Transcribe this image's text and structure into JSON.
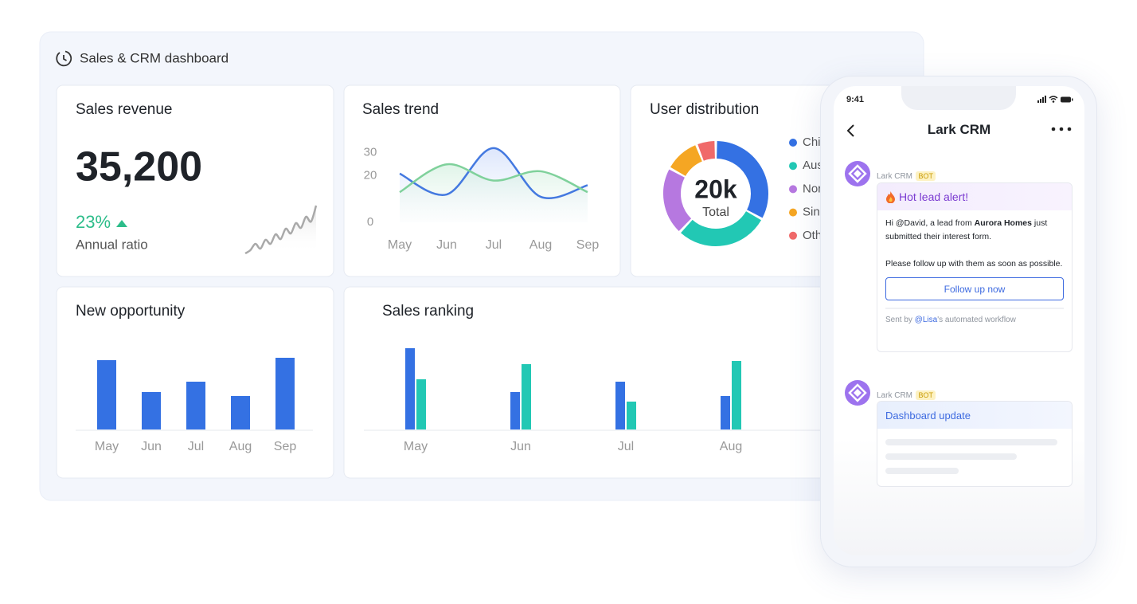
{
  "dashboard": {
    "title": "Sales & CRM dashboard",
    "sales_revenue": {
      "title": "Sales revenue",
      "value": "35,200",
      "change": "23%",
      "change_label": "Annual ratio",
      "sparkline": [
        0,
        4,
        12,
        6,
        17,
        12,
        24,
        18,
        31,
        25,
        38,
        32,
        46,
        40,
        60
      ],
      "color": "#a9a9a9"
    },
    "sales_trend": {
      "type": "line",
      "title": "Sales trend",
      "categories": [
        "May",
        "Jun",
        "Jul",
        "Aug",
        "Sep"
      ],
      "series": [
        {
          "color": "#4479e0",
          "values": [
            21,
            12,
            32,
            11,
            16
          ]
        },
        {
          "color": "#7fd19b",
          "values": [
            13,
            25,
            18,
            22,
            13
          ]
        }
      ],
      "ylim": [
        0,
        34
      ],
      "yticks": [
        0,
        20,
        30
      ]
    },
    "user_distribution": {
      "type": "pie",
      "title": "User distribution",
      "center_value": "20k",
      "center_label": "Total",
      "categories": [
        "Chi",
        "Aus",
        "Nor",
        "Sin",
        "Oth"
      ],
      "values": [
        33,
        29,
        21,
        11,
        6
      ],
      "colors": [
        "#3471e3",
        "#22c8b4",
        "#b678e0",
        "#f5a623",
        "#f06a6a"
      ]
    },
    "new_opportunity": {
      "type": "bar",
      "title": "New opportunity",
      "categories": [
        "May",
        "Jun",
        "Jul",
        "Aug",
        "Sep"
      ],
      "values": [
        87,
        47,
        60,
        42,
        90
      ],
      "color": "#3471e3"
    },
    "sales_ranking": {
      "type": "bar",
      "title": "Sales ranking",
      "categories": [
        "May",
        "Jun",
        "Jul",
        "Aug"
      ],
      "series": [
        {
          "color": "#3471e3",
          "values": [
            102,
            47,
            60,
            42
          ]
        },
        {
          "color": "#22c8b4",
          "values": [
            63,
            82,
            35,
            86
          ]
        }
      ]
    }
  },
  "phone": {
    "time": "9:41",
    "title": "Lark CRM",
    "messages": [
      {
        "sender": "Lark CRM",
        "badge": "BOT",
        "card_title": "Hot lead alert!",
        "body": [
          "Hi @David, a lead from ",
          "Aurora Homes",
          " just submitted their interest form."
        ],
        "body2": "Please follow up with them as soon as possible.",
        "button": "Follow up now",
        "footer": [
          "Sent by ",
          "@Lisa",
          "'s automated workflow"
        ]
      },
      {
        "sender": "Lark CRM",
        "badge": "BOT",
        "card_title": "Dashboard update"
      }
    ]
  }
}
